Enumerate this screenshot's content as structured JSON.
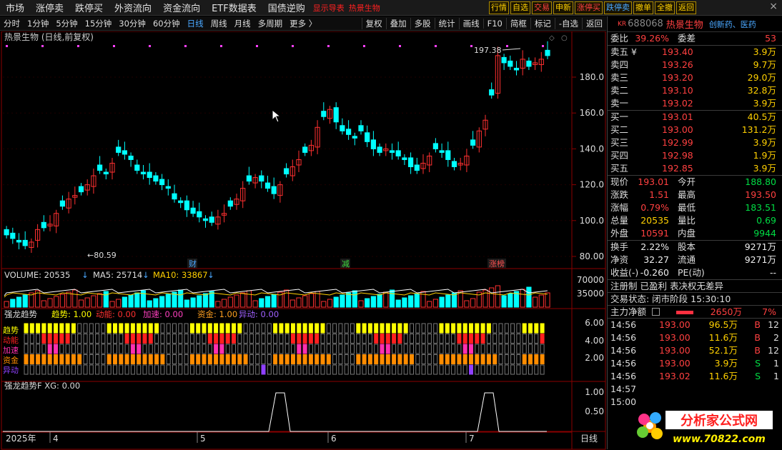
{
  "nav": {
    "items": [
      "市场",
      "涨停卖",
      "跌停买",
      "外资流向",
      "资金流向",
      "ETF数据表",
      "国债逆购"
    ],
    "red_items": [
      "显示导表",
      "热景生物"
    ],
    "buttons": [
      {
        "label": "行情",
        "tone": "yel"
      },
      {
        "label": "自选",
        "tone": "yel"
      },
      {
        "label": "交易",
        "tone": "red"
      },
      {
        "label": "申新",
        "tone": "yel"
      },
      {
        "label": "涨停买",
        "tone": "red"
      },
      {
        "label": "跌停卖",
        "tone": "blue"
      },
      {
        "label": "撤单",
        "tone": "yel"
      },
      {
        "label": "全撤",
        "tone": "yel"
      },
      {
        "label": "返回",
        "tone": "yel"
      }
    ],
    "close": "×"
  },
  "toolbar": {
    "periods": [
      "分时",
      "1分钟",
      "5分钟",
      "15分钟",
      "30分钟",
      "60分钟",
      "日线",
      "周线",
      "月线",
      "多周期",
      "更多 〉"
    ],
    "selected": "日线",
    "tools": [
      "复权",
      "叠加",
      "多股",
      "统计",
      "画线",
      "F10",
      "简框",
      "标记",
      "-自选",
      "返回"
    ]
  },
  "chart": {
    "title": "热景生物 (日线,前复权)",
    "price_ticks": [
      "180.0",
      "160.0",
      "140.0",
      "120.0",
      "100.0",
      "80.00"
    ],
    "hi_label": "197.38",
    "lo_label": "←80.59",
    "events": [
      {
        "label": "财",
        "color": "#4aa8ff"
      },
      {
        "label": "减",
        "color": "#40dd40"
      },
      {
        "label": "涨榜",
        "color": "#ff5050"
      }
    ],
    "vol": {
      "title": "VOLUME: 20535",
      "ma5": "MA5: 25714",
      "ma10": "MA10: 33867",
      "ticks": [
        "70000",
        "35000"
      ]
    },
    "trend": {
      "title": "强龙趋势",
      "items": [
        {
          "label": "趋势: 1.00",
          "color": "#ffff00"
        },
        {
          "label": "动能: 0.00",
          "color": "#ff3030"
        },
        {
          "label": "加速: 0.00",
          "color": "#ff40c0"
        },
        {
          "label": "资金: 1.00",
          "color": "#ffa020"
        },
        {
          "label": "异动: 0.00",
          "color": "#a060ff"
        }
      ],
      "rows": [
        "趋势",
        "动能",
        "加速",
        "资金",
        "异动"
      ],
      "ticks": [
        "6.00",
        "4.00",
        "2.00"
      ]
    },
    "xg": {
      "title": "强龙趋势F  XG: 0.00",
      "ticks": [
        "1.00",
        "0.50"
      ]
    },
    "dates": [
      "2025年",
      "4",
      "5",
      "6",
      "7"
    ],
    "period_btn": "日线"
  },
  "panel": {
    "kr": "KR",
    "code": "688068",
    "name": "热景生物",
    "concept": "创新药、医药",
    "weibi": {
      "label": "委比",
      "value": "39.26%",
      "label2": "委差",
      "value2": "53"
    },
    "asks": [
      {
        "label": "卖五 ¥",
        "price": "193.40",
        "vol": "3.9万"
      },
      {
        "label": "卖四",
        "price": "193.26",
        "vol": "9.7万"
      },
      {
        "label": "卖三",
        "price": "193.20",
        "vol": "29.0万"
      },
      {
        "label": "卖二",
        "price": "193.10",
        "vol": "32.8万"
      },
      {
        "label": "卖一",
        "price": "193.02",
        "vol": "3.9万"
      }
    ],
    "bids": [
      {
        "label": "买一",
        "price": "193.01",
        "vol": "40.5万"
      },
      {
        "label": "买二",
        "price": "193.00",
        "vol": "131.2万"
      },
      {
        "label": "买三",
        "price": "192.99",
        "vol": "3.9万"
      },
      {
        "label": "买四",
        "price": "192.98",
        "vol": "1.9万"
      },
      {
        "label": "买五",
        "price": "192.85",
        "vol": "3.9万"
      }
    ],
    "quote": [
      {
        "l": "现价",
        "v": "193.01",
        "vc": "red",
        "l2": "今开",
        "v2": "188.80",
        "v2c": "grn"
      },
      {
        "l": "涨跌",
        "v": "1.51",
        "vc": "red",
        "l2": "最高",
        "v2": "193.50",
        "v2c": "red"
      },
      {
        "l": "涨幅",
        "v": "0.79%",
        "vc": "red",
        "l2": "最低",
        "v2": "183.51",
        "v2c": "grn"
      },
      {
        "l": "总量",
        "v": "20535",
        "vc": "yel",
        "l2": "量比",
        "v2": "0.69",
        "v2c": "grn"
      },
      {
        "l": "外盘",
        "v": "10591",
        "vc": "red",
        "l2": "内盘",
        "v2": "9944",
        "v2c": "grn"
      }
    ],
    "quote2": [
      {
        "l": "换手",
        "v": "2.22%",
        "vc": "wht",
        "l2": "股本",
        "v2": "9271万",
        "v2c": "wht"
      },
      {
        "l": "净资",
        "v": "32.27",
        "vc": "wht",
        "l2": "流通",
        "v2": "9271万",
        "v2c": "wht"
      },
      {
        "l": "收益(-)",
        "v": "-0.260",
        "vc": "wht",
        "l2": "PE(动)",
        "v2": "--",
        "v2c": "wht"
      }
    ],
    "reg": "注册制 已盈利 表决权无差异",
    "status": "交易状态: 闭市阶段 15:30:10",
    "mainflow": {
      "label": "主力净额",
      "value": "2650万",
      "pct": "7%"
    },
    "ticks": [
      {
        "t": "14:56",
        "p": "193.00",
        "v": "96.5万",
        "s": "B",
        "n": "12"
      },
      {
        "t": "14:56",
        "p": "193.00",
        "v": "11.6万",
        "s": "B",
        "n": "2"
      },
      {
        "t": "14:56",
        "p": "193.00",
        "v": "52.1万",
        "s": "B",
        "n": "12"
      },
      {
        "t": "14:56",
        "p": "193.00",
        "v": "3.9万",
        "s": "S",
        "n": "1"
      },
      {
        "t": "14:56",
        "p": "193.02",
        "v": "11.6万",
        "s": "S",
        "n": "1"
      },
      {
        "t": "14:57",
        "p": "",
        "v": "",
        "s": "",
        "n": ""
      },
      {
        "t": "15:00",
        "p": "",
        "v": "",
        "s": "",
        "n": ""
      }
    ],
    "logo_text": "分析家公式网",
    "logo_url": "www.70822.com"
  },
  "colors": {
    "up": "#ff3030",
    "down": "#00ffff",
    "ma10": "#ffd000",
    "ma5": "#ffffff",
    "grid": "#8b0000"
  }
}
